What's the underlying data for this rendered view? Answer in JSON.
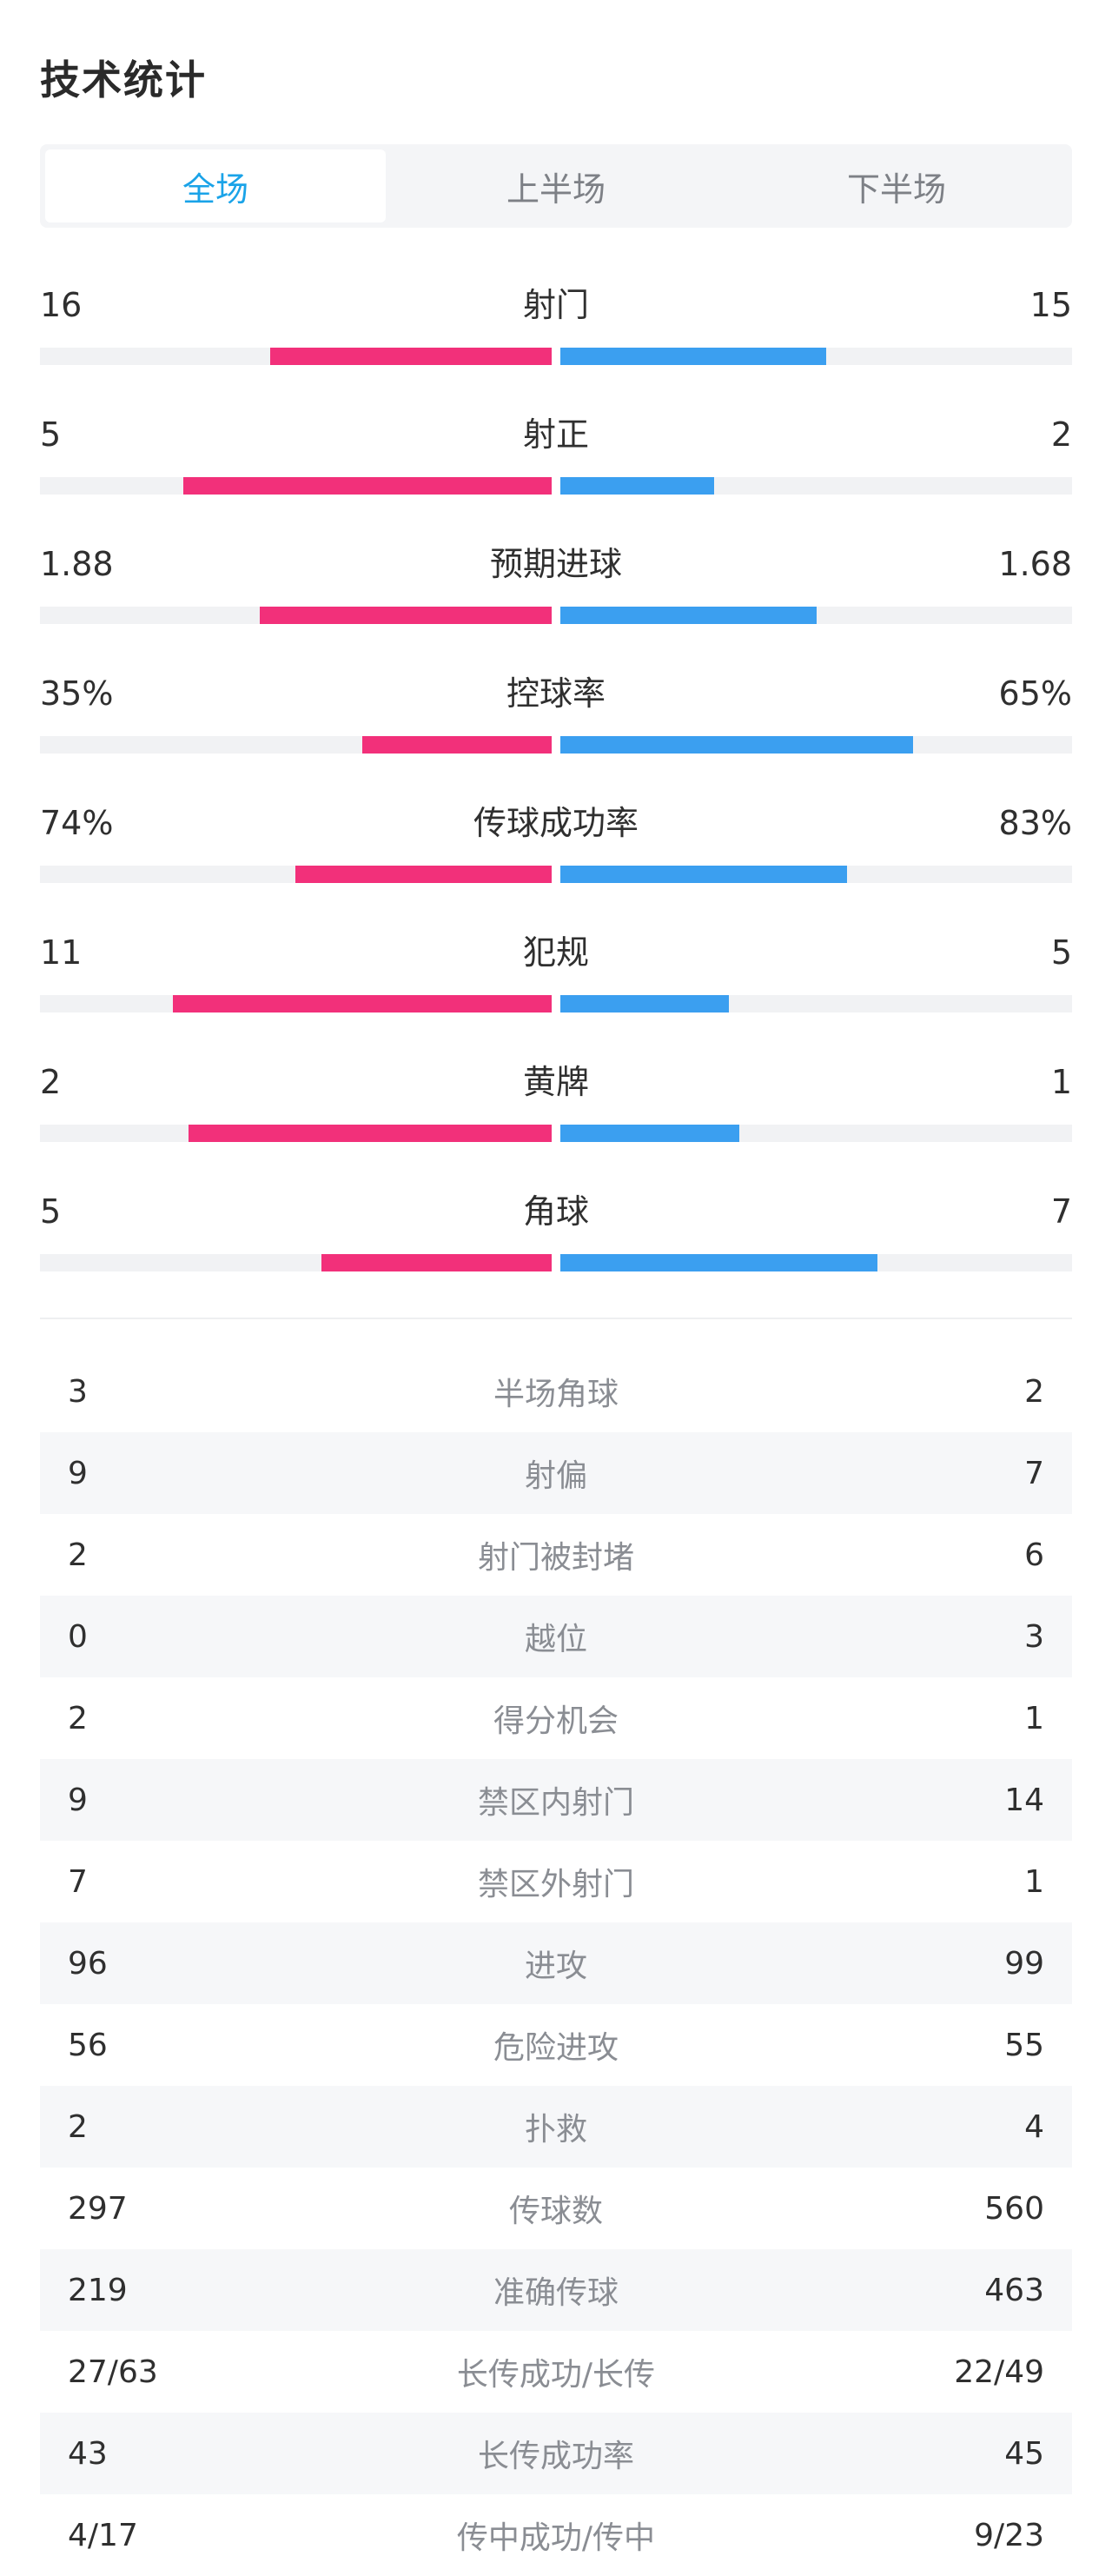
{
  "title": "技术统计",
  "tabs": [
    "全场",
    "上半场",
    "下半场"
  ],
  "active_tab": 0,
  "colors": {
    "home": "#f2307a",
    "away": "#3b9ff0",
    "accent": "#1aa3e8"
  },
  "bar_stats": [
    {
      "label": "射门",
      "home": "16",
      "away": "15",
      "home_frac": 0.55,
      "away_frac": 0.52
    },
    {
      "label": "射正",
      "home": "5",
      "away": "2",
      "home_frac": 0.72,
      "away_frac": 0.3
    },
    {
      "label": "预期进球",
      "home": "1.88",
      "away": "1.68",
      "home_frac": 0.57,
      "away_frac": 0.5
    },
    {
      "label": "控球率",
      "home": "35%",
      "away": "65%",
      "home_frac": 0.37,
      "away_frac": 0.69
    },
    {
      "label": "传球成功率",
      "home": "74%",
      "away": "83%",
      "home_frac": 0.5,
      "away_frac": 0.56
    },
    {
      "label": "犯规",
      "home": "11",
      "away": "5",
      "home_frac": 0.74,
      "away_frac": 0.33
    },
    {
      "label": "黄牌",
      "home": "2",
      "away": "1",
      "home_frac": 0.71,
      "away_frac": 0.35
    },
    {
      "label": "角球",
      "home": "5",
      "away": "7",
      "home_frac": 0.45,
      "away_frac": 0.62
    }
  ],
  "table_stats": [
    {
      "label": "半场角球",
      "home": "3",
      "away": "2"
    },
    {
      "label": "射偏",
      "home": "9",
      "away": "7"
    },
    {
      "label": "射门被封堵",
      "home": "2",
      "away": "6"
    },
    {
      "label": "越位",
      "home": "0",
      "away": "3"
    },
    {
      "label": "得分机会",
      "home": "2",
      "away": "1"
    },
    {
      "label": "禁区内射门",
      "home": "9",
      "away": "14"
    },
    {
      "label": "禁区外射门",
      "home": "7",
      "away": "1"
    },
    {
      "label": "进攻",
      "home": "96",
      "away": "99"
    },
    {
      "label": "危险进攻",
      "home": "56",
      "away": "55"
    },
    {
      "label": "扑救",
      "home": "2",
      "away": "4"
    },
    {
      "label": "传球数",
      "home": "297",
      "away": "560"
    },
    {
      "label": "准确传球",
      "home": "219",
      "away": "463"
    },
    {
      "label": "长传成功/长传",
      "home": "27/63",
      "away": "22/49"
    },
    {
      "label": "长传成功率",
      "home": "43",
      "away": "45"
    },
    {
      "label": "传中成功/传中",
      "home": "4/17",
      "away": "9/23"
    }
  ]
}
